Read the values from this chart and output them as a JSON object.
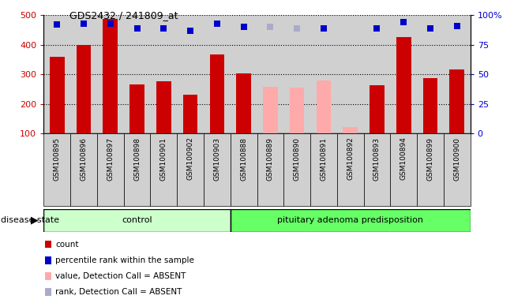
{
  "title": "GDS2432 / 241809_at",
  "samples": [
    "GSM100895",
    "GSM100896",
    "GSM100897",
    "GSM100898",
    "GSM100901",
    "GSM100902",
    "GSM100903",
    "GSM100888",
    "GSM100889",
    "GSM100890",
    "GSM100891",
    "GSM100892",
    "GSM100893",
    "GSM100894",
    "GSM100899",
    "GSM100900"
  ],
  "count_values": [
    358,
    398,
    488,
    265,
    275,
    230,
    368,
    302,
    null,
    null,
    null,
    null,
    263,
    425,
    288,
    315
  ],
  "absent_value_values": [
    null,
    null,
    null,
    null,
    null,
    null,
    null,
    null,
    258,
    255,
    278,
    122,
    null,
    null,
    null,
    null
  ],
  "percentile_rank": [
    92,
    93,
    93,
    89,
    89,
    87,
    93,
    90,
    null,
    null,
    89,
    null,
    89,
    94,
    89,
    91
  ],
  "absent_rank_values": [
    null,
    null,
    null,
    null,
    null,
    null,
    null,
    null,
    90,
    89,
    null,
    null,
    null,
    null,
    null,
    null
  ],
  "n_control": 7,
  "n_total": 16,
  "ylim_left": [
    100,
    500
  ],
  "ylim_right": [
    0,
    100
  ],
  "bar_width": 0.55,
  "count_color": "#cc0000",
  "absent_value_color": "#ffaaaa",
  "percentile_color": "#0000cc",
  "absent_rank_color": "#aaaacc",
  "control_fill": "#ccffcc",
  "disease_fill": "#66ff66",
  "bg_color": "#d0d0d0",
  "white": "#ffffff",
  "grid_color": "#000000",
  "legend_items": [
    {
      "label": "count",
      "color": "#cc0000"
    },
    {
      "label": "percentile rank within the sample",
      "color": "#0000cc"
    },
    {
      "label": "value, Detection Call = ABSENT",
      "color": "#ffaaaa"
    },
    {
      "label": "rank, Detection Call = ABSENT",
      "color": "#aaaacc"
    }
  ]
}
